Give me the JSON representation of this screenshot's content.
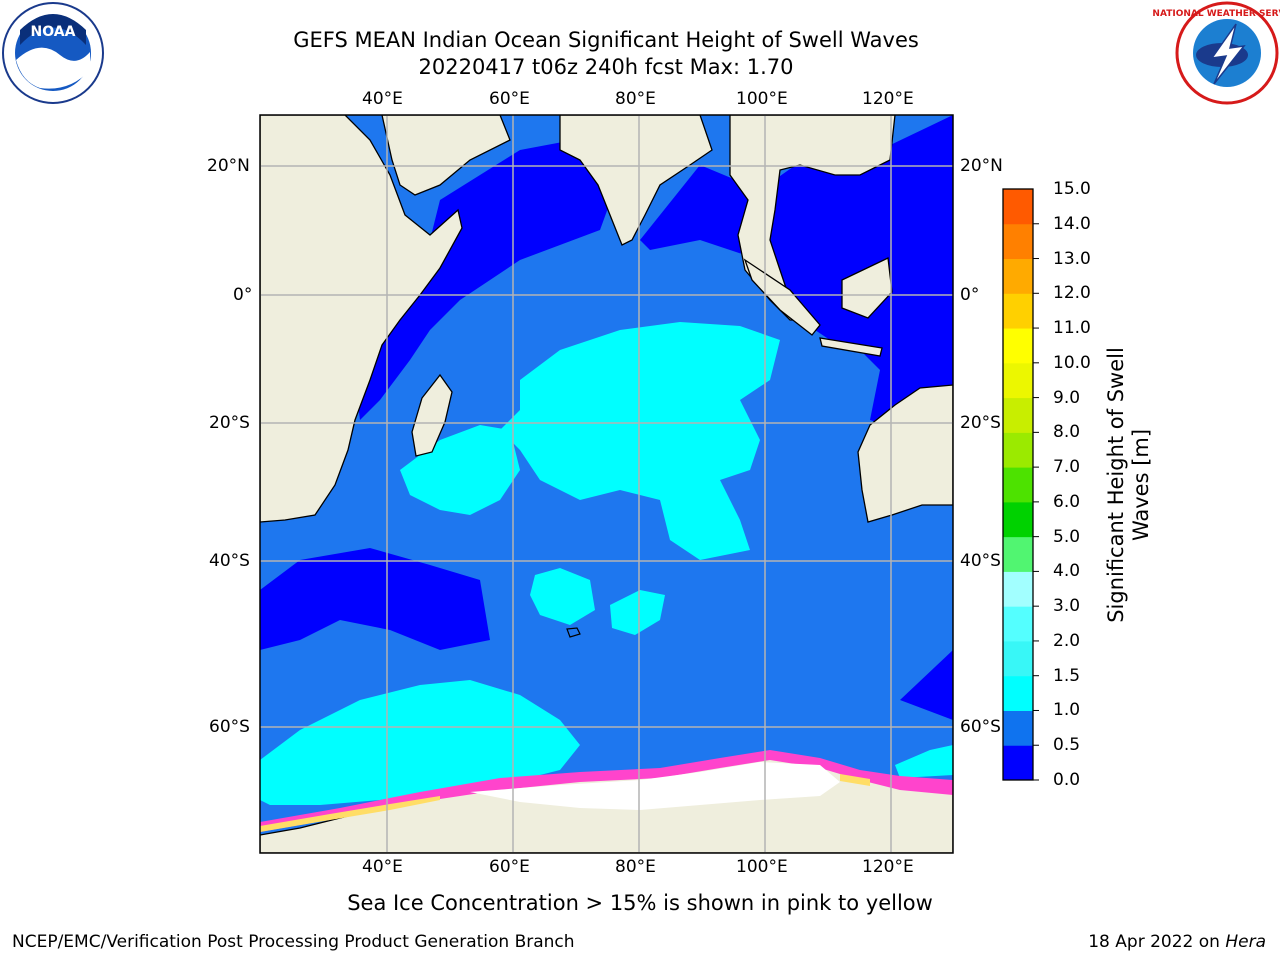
{
  "title_line1": "GEFS MEAN Indian Ocean Significant Height of Swell Waves",
  "title_line2": "20220417 t06z 240h fcst   Max: 1.70",
  "subcaption": "Sea Ice Concentration > 15% is shown in pink to yellow",
  "footer_left": "NCEP/EMC/Verification Post Processing Product Generation Branch",
  "footer_date": "18 Apr 2022 on ",
  "footer_host": "Hera",
  "logos": {
    "noaa_text": "NOAA",
    "nws_text": "NATIONAL WEATHER SERVICE"
  },
  "map": {
    "lon_labels": [
      "40°E",
      "60°E",
      "80°E",
      "100°E",
      "120°E"
    ],
    "lat_labels": [
      "20°N",
      "0°",
      "20°S",
      "40°S",
      "60°S"
    ],
    "extent": {
      "lon_min": 20,
      "lon_max": 130,
      "lat_min": -78,
      "lat_max": 28
    }
  },
  "colorbar": {
    "title_line1": "Significant Height of Swell",
    "title_line2": "Waves [m]",
    "ticks": [
      "0.0",
      "0.5",
      "1.0",
      "1.5",
      "2.0",
      "3.0",
      "4.0",
      "5.0",
      "6.0",
      "7.0",
      "8.0",
      "9.0",
      "10.0",
      "11.0",
      "12.0",
      "13.0",
      "14.0",
      "15.0"
    ],
    "colors": [
      "#0000ff",
      "#0f73ef",
      "#00ffff",
      "#38f7f7",
      "#54ffff",
      "#a2ffff",
      "#51f571",
      "#00d200",
      "#4de200",
      "#9bea00",
      "#c8ee00",
      "#ecf700",
      "#ffff00",
      "#ffd000",
      "#ffaa00",
      "#ff8000",
      "#ff5a00",
      "#ff2300",
      "#ff0000"
    ]
  },
  "colors": {
    "land": "#efeedd",
    "ocean_mid": "#1e77ef",
    "ocean_low": "#0000ff",
    "ocean_high": "#00ffff",
    "grid": "#b4b4b4",
    "ice_white": "#ffffff",
    "ice_pink": "#ff44cc",
    "ice_yellow": "#ffdd66"
  }
}
